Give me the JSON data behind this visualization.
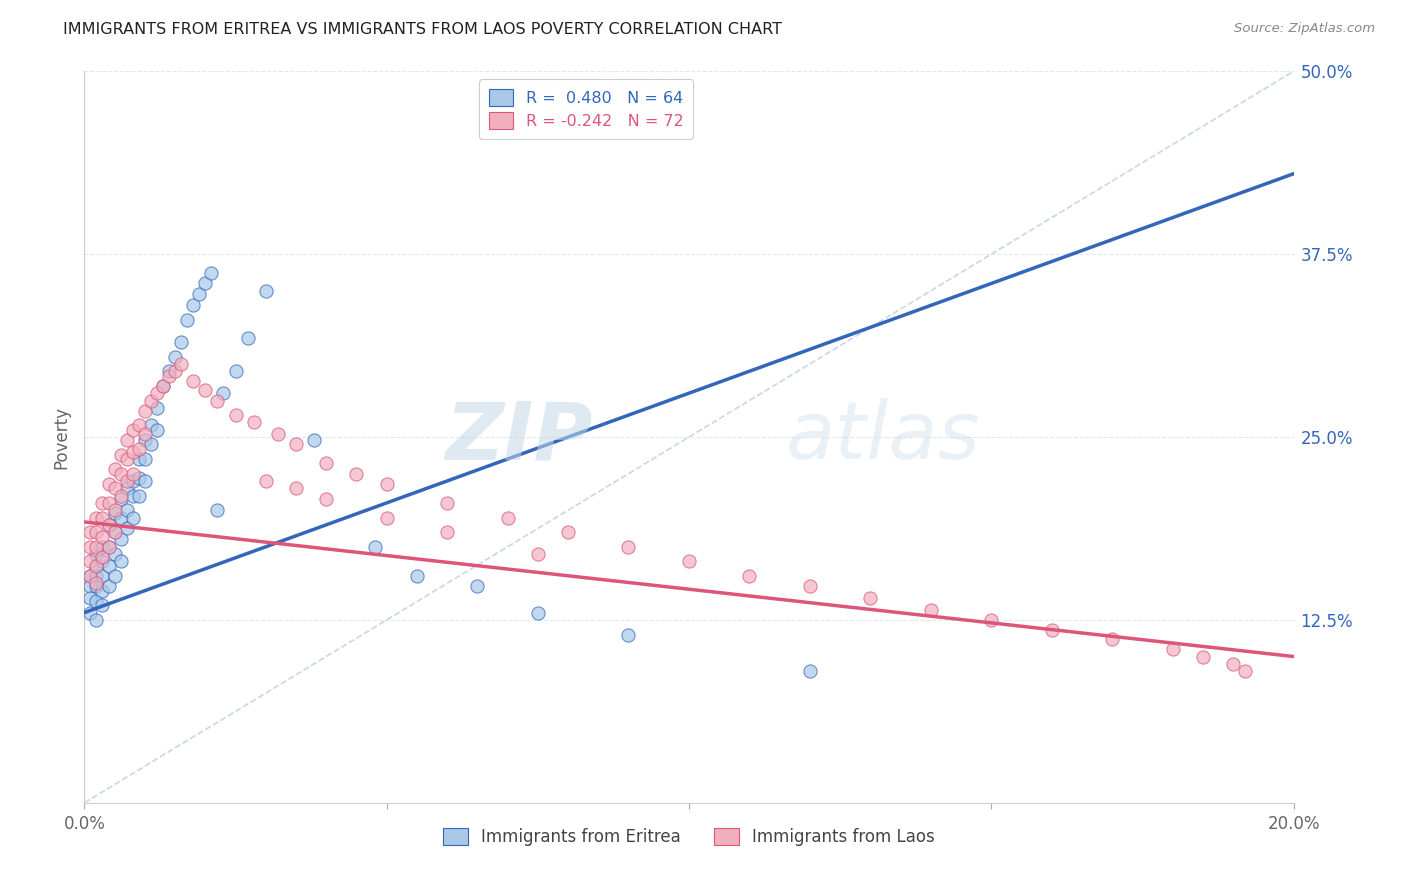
{
  "title": "IMMIGRANTS FROM ERITREA VS IMMIGRANTS FROM LAOS POVERTY CORRELATION CHART",
  "source": "Source: ZipAtlas.com",
  "ylabel": "Poverty",
  "xlim": [
    0.0,
    0.2
  ],
  "ylim": [
    0.0,
    0.5
  ],
  "xticks": [
    0.0,
    0.05,
    0.1,
    0.15,
    0.2
  ],
  "xticklabels": [
    "0.0%",
    "",
    "",
    "",
    "20.0%"
  ],
  "yticks": [
    0.0,
    0.125,
    0.25,
    0.375,
    0.5
  ],
  "yticklabels": [
    "",
    "12.5%",
    "25.0%",
    "37.5%",
    "50.0%"
  ],
  "color_eritrea": "#a8c8e8",
  "color_laos": "#f0b0c0",
  "line_color_eritrea": "#3366bb",
  "line_color_laos": "#dd5577",
  "line_color_dashed": "#b8cfe0",
  "watermark_zip": "ZIP",
  "watermark_atlas": "atlas",
  "background_color": "#ffffff",
  "grid_color": "#dde8f0",
  "eritrea_line_x0": 0.0,
  "eritrea_line_y0": 0.13,
  "eritrea_line_x1": 0.2,
  "eritrea_line_y1": 0.43,
  "laos_line_x0": 0.0,
  "laos_line_y0": 0.192,
  "laos_line_x1": 0.2,
  "laos_line_y1": 0.1,
  "eritrea_x": [
    0.001,
    0.001,
    0.001,
    0.001,
    0.002,
    0.002,
    0.002,
    0.002,
    0.002,
    0.002,
    0.003,
    0.003,
    0.003,
    0.003,
    0.003,
    0.004,
    0.004,
    0.004,
    0.004,
    0.005,
    0.005,
    0.005,
    0.005,
    0.006,
    0.006,
    0.006,
    0.006,
    0.007,
    0.007,
    0.007,
    0.008,
    0.008,
    0.008,
    0.009,
    0.009,
    0.009,
    0.01,
    0.01,
    0.01,
    0.011,
    0.011,
    0.012,
    0.012,
    0.013,
    0.014,
    0.015,
    0.016,
    0.017,
    0.018,
    0.019,
    0.02,
    0.021,
    0.022,
    0.023,
    0.025,
    0.027,
    0.03,
    0.038,
    0.048,
    0.055,
    0.065,
    0.075,
    0.09,
    0.12
  ],
  "eritrea_y": [
    0.155,
    0.148,
    0.14,
    0.13,
    0.17,
    0.162,
    0.155,
    0.148,
    0.138,
    0.125,
    0.175,
    0.165,
    0.155,
    0.145,
    0.135,
    0.19,
    0.175,
    0.162,
    0.148,
    0.198,
    0.185,
    0.17,
    0.155,
    0.208,
    0.195,
    0.18,
    0.165,
    0.215,
    0.2,
    0.188,
    0.22,
    0.21,
    0.195,
    0.235,
    0.222,
    0.21,
    0.248,
    0.235,
    0.22,
    0.258,
    0.245,
    0.27,
    0.255,
    0.285,
    0.295,
    0.305,
    0.315,
    0.33,
    0.34,
    0.348,
    0.355,
    0.362,
    0.2,
    0.28,
    0.295,
    0.318,
    0.35,
    0.248,
    0.175,
    0.155,
    0.148,
    0.13,
    0.115,
    0.09
  ],
  "laos_x": [
    0.001,
    0.001,
    0.001,
    0.001,
    0.002,
    0.002,
    0.002,
    0.002,
    0.002,
    0.003,
    0.003,
    0.003,
    0.003,
    0.004,
    0.004,
    0.004,
    0.004,
    0.005,
    0.005,
    0.005,
    0.005,
    0.006,
    0.006,
    0.006,
    0.007,
    0.007,
    0.007,
    0.008,
    0.008,
    0.008,
    0.009,
    0.009,
    0.01,
    0.01,
    0.011,
    0.012,
    0.013,
    0.014,
    0.015,
    0.016,
    0.018,
    0.02,
    0.022,
    0.025,
    0.028,
    0.032,
    0.035,
    0.04,
    0.045,
    0.05,
    0.06,
    0.07,
    0.08,
    0.09,
    0.1,
    0.11,
    0.12,
    0.13,
    0.14,
    0.15,
    0.16,
    0.17,
    0.18,
    0.185,
    0.19,
    0.192,
    0.03,
    0.035,
    0.04,
    0.05,
    0.06,
    0.075
  ],
  "laos_y": [
    0.185,
    0.175,
    0.165,
    0.155,
    0.195,
    0.185,
    0.175,
    0.162,
    0.15,
    0.205,
    0.195,
    0.182,
    0.168,
    0.218,
    0.205,
    0.19,
    0.175,
    0.228,
    0.215,
    0.2,
    0.185,
    0.238,
    0.225,
    0.21,
    0.248,
    0.235,
    0.22,
    0.255,
    0.24,
    0.225,
    0.258,
    0.242,
    0.268,
    0.252,
    0.275,
    0.28,
    0.285,
    0.292,
    0.295,
    0.3,
    0.288,
    0.282,
    0.275,
    0.265,
    0.26,
    0.252,
    0.245,
    0.232,
    0.225,
    0.218,
    0.205,
    0.195,
    0.185,
    0.175,
    0.165,
    0.155,
    0.148,
    0.14,
    0.132,
    0.125,
    0.118,
    0.112,
    0.105,
    0.1,
    0.095,
    0.09,
    0.22,
    0.215,
    0.208,
    0.195,
    0.185,
    0.17
  ]
}
